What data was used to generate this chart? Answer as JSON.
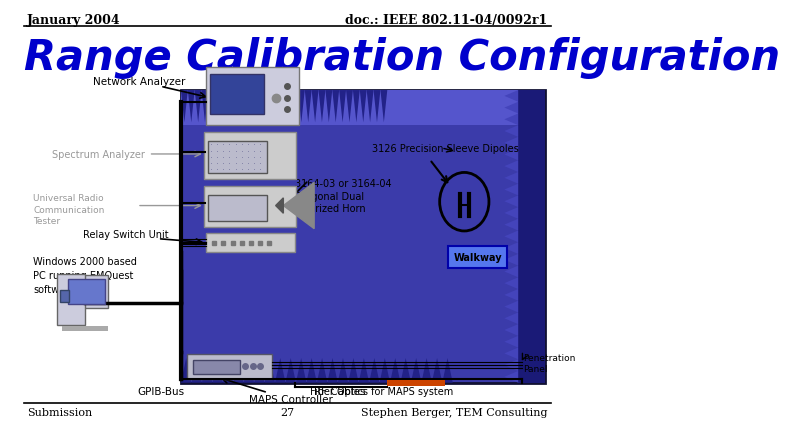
{
  "title": "Range Calibration Configuration",
  "header_left": "January 2004",
  "header_right": "doc.: IEEE 802.11-04/0092r1",
  "footer_left": "Submission",
  "footer_center": "27",
  "footer_right": "Stephen Berger, TEM Consulting",
  "title_color": "#0000CC",
  "title_fontsize": 30,
  "header_fontsize": 9,
  "footer_fontsize": 8,
  "bg_color": "#FFFFFF",
  "label_network_analyzer": "Network Analyzer",
  "label_spectrum_analyzer": "Spectrum Analyzer",
  "label_universal_radio": "Universal Radio\nCommunication\nTester",
  "label_relay": "Relay Switch Unit",
  "label_windows": "Windows 2000 based\nPC running EMQuest\nsoftware",
  "label_gpib": "GPIB-Bus",
  "label_rf_cables": "RF Cables",
  "label_maps_controller": "MAPS Controller",
  "label_fiber_optics": "Fiber Optics for MAPS system",
  "label_penetration": "Penetration\nPanel",
  "label_walkway": "Walkway",
  "label_horn": "3164-03 or 3164-04\nDiagonal Dual\nPolarized Horn",
  "label_dipoles": "3126 Precision Sleeve Dipoles",
  "chamber_fill": "#3B3BAA",
  "spike_dark": "#222288",
  "spike_mid": "#4444BB",
  "right_wall_fill": "#1A1A77",
  "walkway_fill": "#5577EE",
  "orange_bar": "#CC4400",
  "label_color_gray": "#999999",
  "label_color_black": "#000000"
}
